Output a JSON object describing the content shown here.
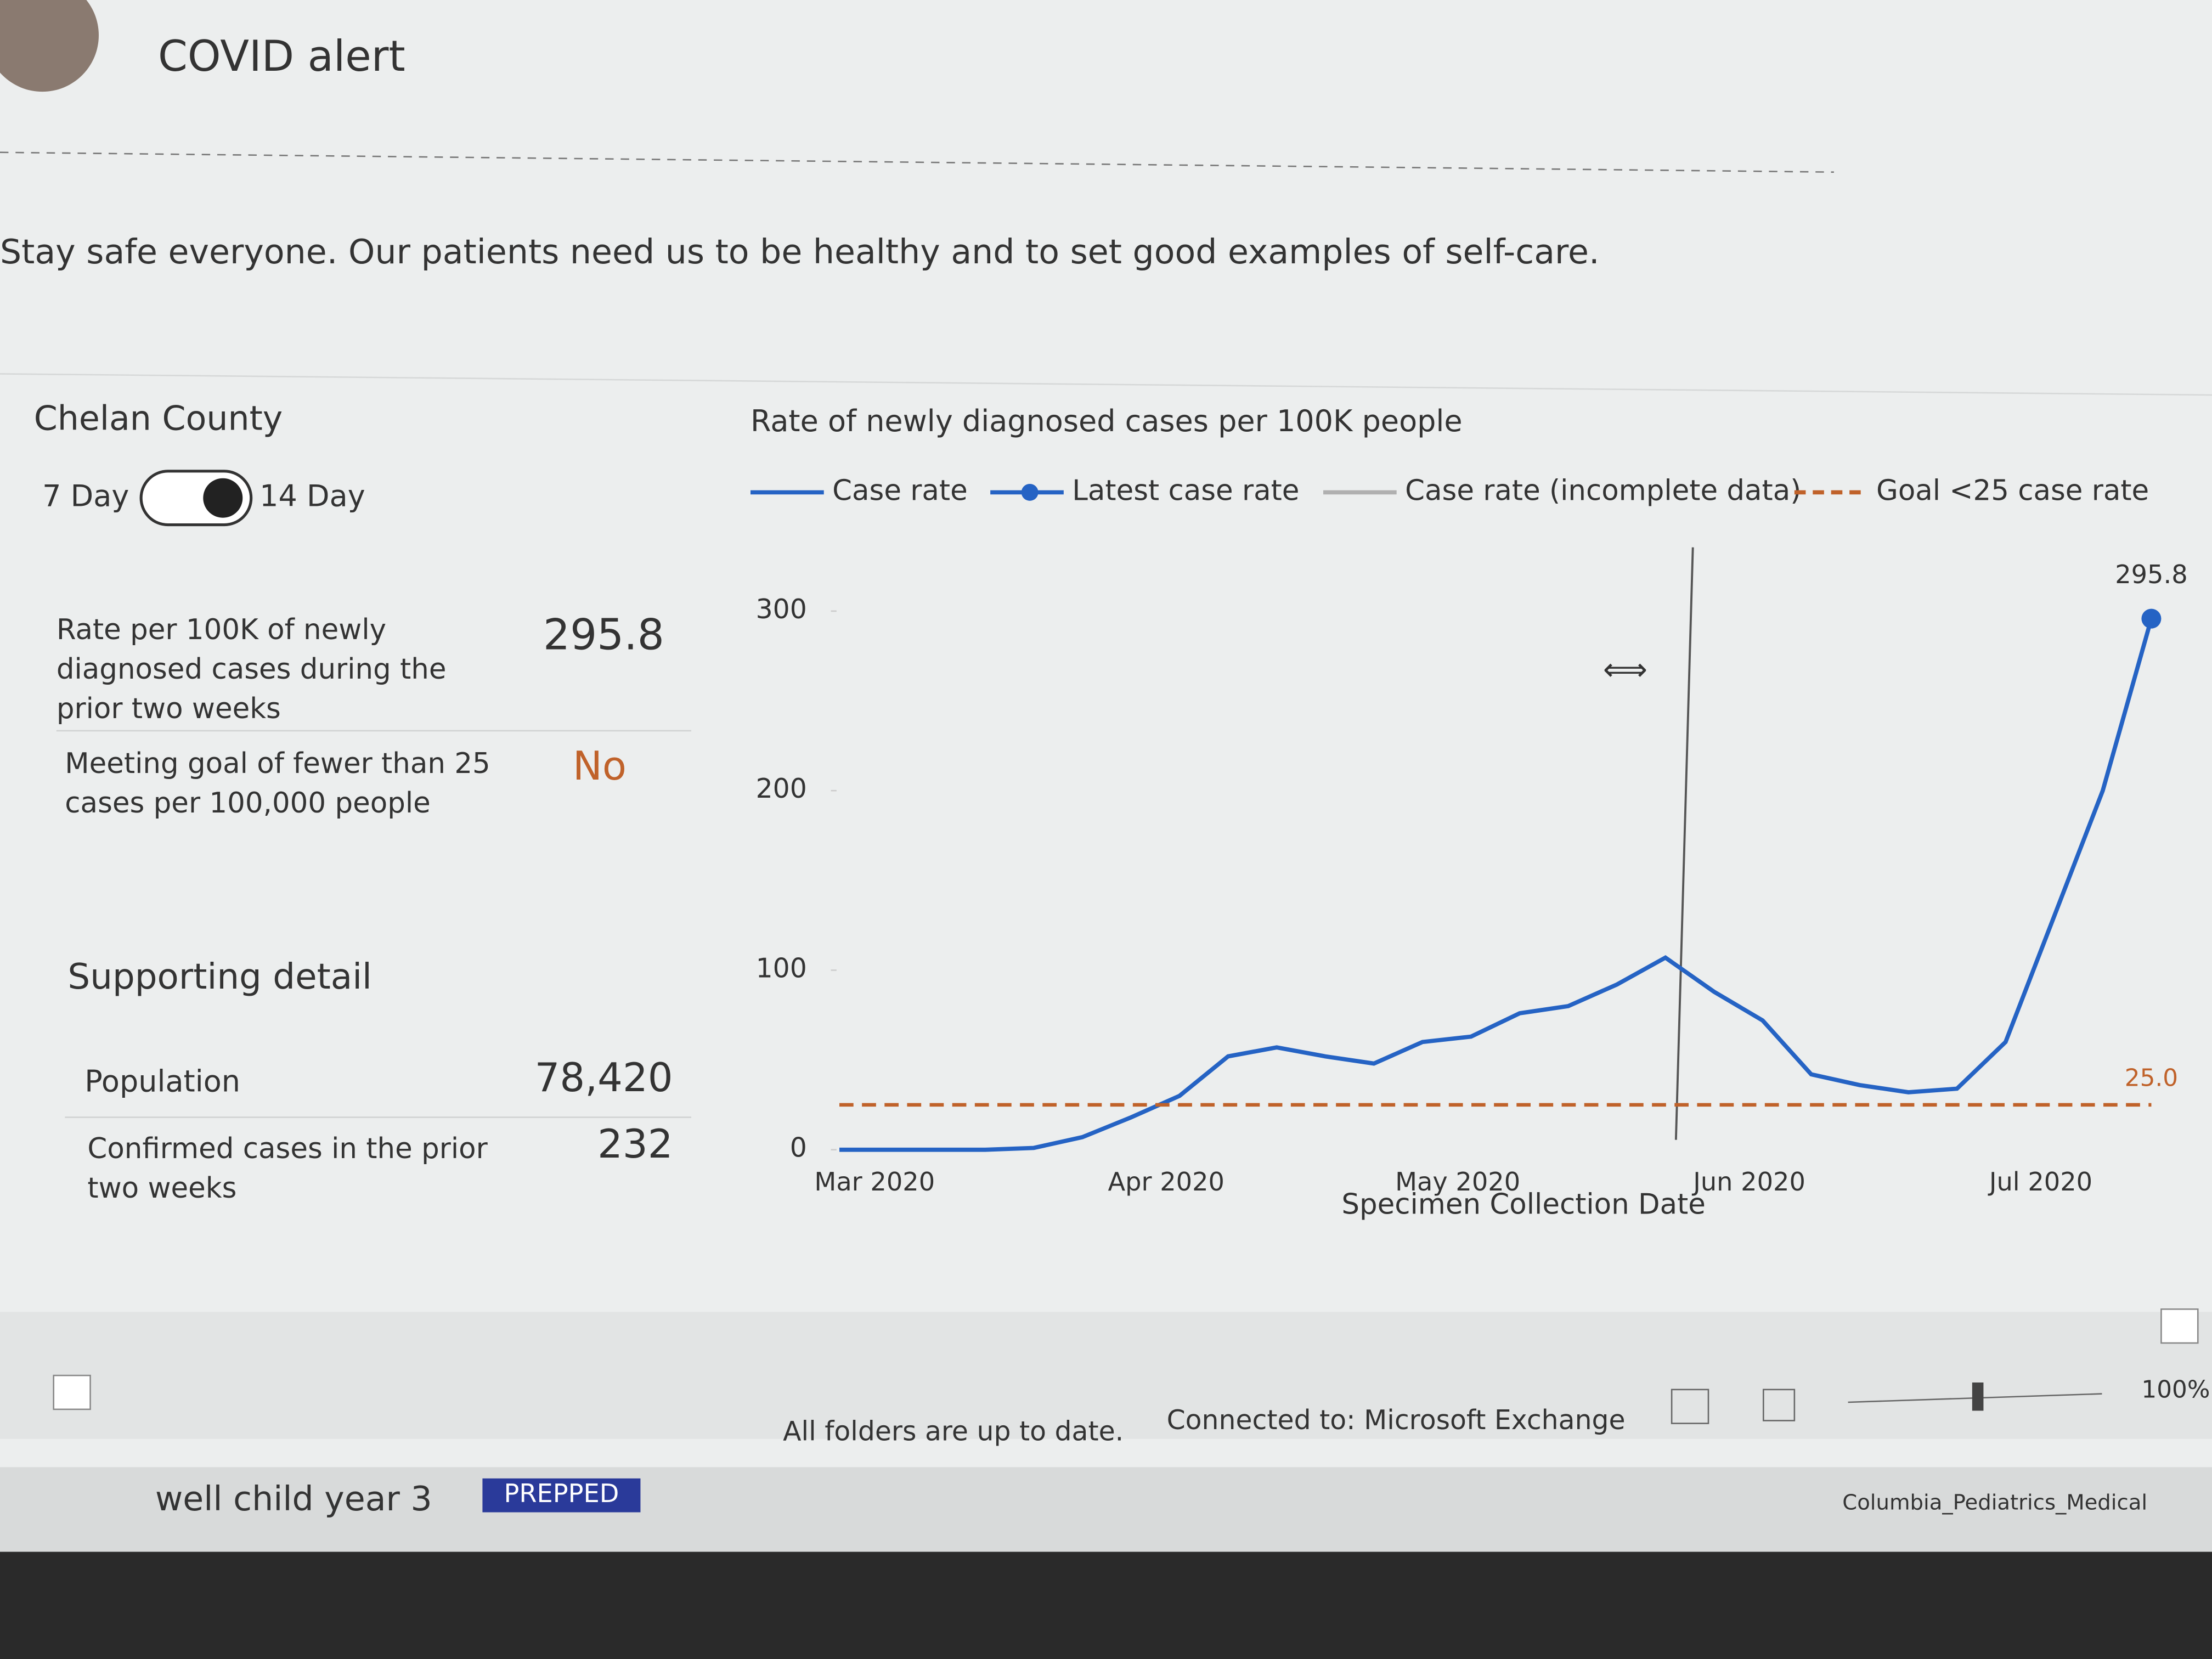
{
  "header": {
    "title": "COVID alert"
  },
  "message": "Stay safe everyone. Our patients need us to be healthy and to set good examples of self-care.",
  "panel": {
    "title": "Chelan County",
    "toggle": [
      "7 Day",
      "14 Day"
    ],
    "metrics": [
      {
        "label": "Rate per 100K of newly diagnosed cases during the prior two weeks",
        "value": "295.8"
      },
      {
        "label": "Meeting goal of fewer than 25 cases per 100,000 people",
        "value": "No"
      }
    ],
    "detail_title": "Supporting detail",
    "details": [
      {
        "label": "Population",
        "value": "78,420"
      },
      {
        "label": "Confirmed cases in the prior two weeks",
        "value": "232"
      }
    ]
  },
  "chart_data": {
    "type": "line",
    "title": "Rate of newly diagnosed cases per 100K people",
    "xlabel": "Specimen Collection Date",
    "categories": [
      "Mar 2020",
      null,
      null,
      null,
      null,
      null,
      "Apr 2020",
      null,
      null,
      null,
      null,
      null,
      "May 2020",
      null,
      null,
      null,
      null,
      null,
      "Jun 2020",
      null,
      null,
      null,
      null,
      null,
      "Jul 2020",
      null,
      null,
      null
    ],
    "series": [
      {
        "name": "Case rate",
        "color": "#2563c4",
        "values": [
          0,
          0,
          0,
          0,
          1,
          7,
          18,
          30,
          52,
          57,
          52,
          48,
          60,
          63,
          76,
          80,
          92,
          107,
          88,
          72,
          42,
          36,
          32,
          34,
          60,
          130,
          200,
          295.8
        ]
      },
      {
        "name": "Latest case rate",
        "color": "#2563c4",
        "values": [
          null,
          null,
          null,
          null,
          null,
          null,
          null,
          null,
          null,
          null,
          null,
          null,
          null,
          null,
          null,
          null,
          null,
          null,
          null,
          null,
          null,
          null,
          null,
          null,
          null,
          null,
          null,
          295.8
        ]
      },
      {
        "name": "Case rate (incomplete data)",
        "color": "#b0b0b0",
        "values": [
          null,
          null,
          null,
          null,
          null,
          null,
          null,
          null,
          null,
          null,
          null,
          null,
          null,
          null,
          null,
          null,
          null,
          null,
          null,
          null,
          null,
          null,
          null,
          null,
          null,
          null,
          null,
          null
        ]
      },
      {
        "name": "Goal <25 case rate",
        "color": "#c0622a",
        "dashed": true,
        "values": [
          25,
          25,
          25,
          25,
          25,
          25,
          25,
          25,
          25,
          25,
          25,
          25,
          25,
          25,
          25,
          25,
          25,
          25,
          25,
          25,
          25,
          25,
          25,
          25,
          25,
          25,
          25,
          25
        ],
        "value_labels": [
          null,
          null,
          null,
          null,
          null,
          null,
          null,
          null,
          null,
          null,
          null,
          null,
          null,
          null,
          null,
          null,
          null,
          null,
          null,
          null,
          null,
          null,
          null,
          null,
          null,
          null,
          null,
          "25.0"
        ]
      }
    ],
    "ylim": [
      0,
      330
    ],
    "yticks": [
      0,
      100,
      200,
      300
    ],
    "grid": false
  },
  "status": {
    "sync": "All folders are up to date.",
    "connection": "Connected to: Microsoft Exchange",
    "zoom": "100%"
  },
  "taskbar": {
    "item": "well child year 3",
    "tag": "PREPPED",
    "folder": "Columbia_Pediatrics_Medical"
  }
}
